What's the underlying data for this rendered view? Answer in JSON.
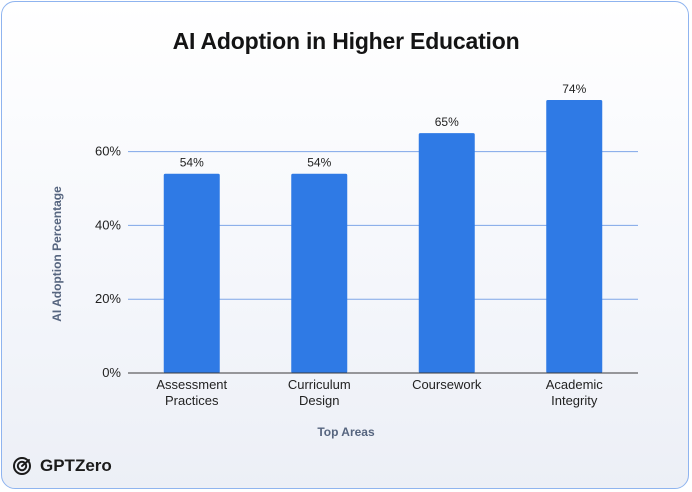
{
  "brand": {
    "name": "GPTZero",
    "icon": "gptzero-logo-icon"
  },
  "chart_data": {
    "type": "bar",
    "title": "AI Adoption in Higher Education",
    "xlabel": "Top Areas",
    "ylabel": "AI Adoption Percentage",
    "categories": [
      [
        "Assessment",
        "Practices"
      ],
      [
        "Curriculum",
        "Design"
      ],
      [
        "Coursework"
      ],
      [
        "Academic",
        "Integrity"
      ]
    ],
    "values": [
      54,
      54,
      65,
      74
    ],
    "value_labels": [
      "54%",
      "54%",
      "65%",
      "74%"
    ],
    "yticks": [
      0,
      20,
      40,
      60
    ],
    "ytick_labels": [
      "0%",
      "20%",
      "40%",
      "60%"
    ],
    "ylim": [
      0,
      75
    ],
    "grid": true,
    "legend": false,
    "bar_color": "#2f7ae5",
    "grid_color": "#7ea6e8"
  }
}
